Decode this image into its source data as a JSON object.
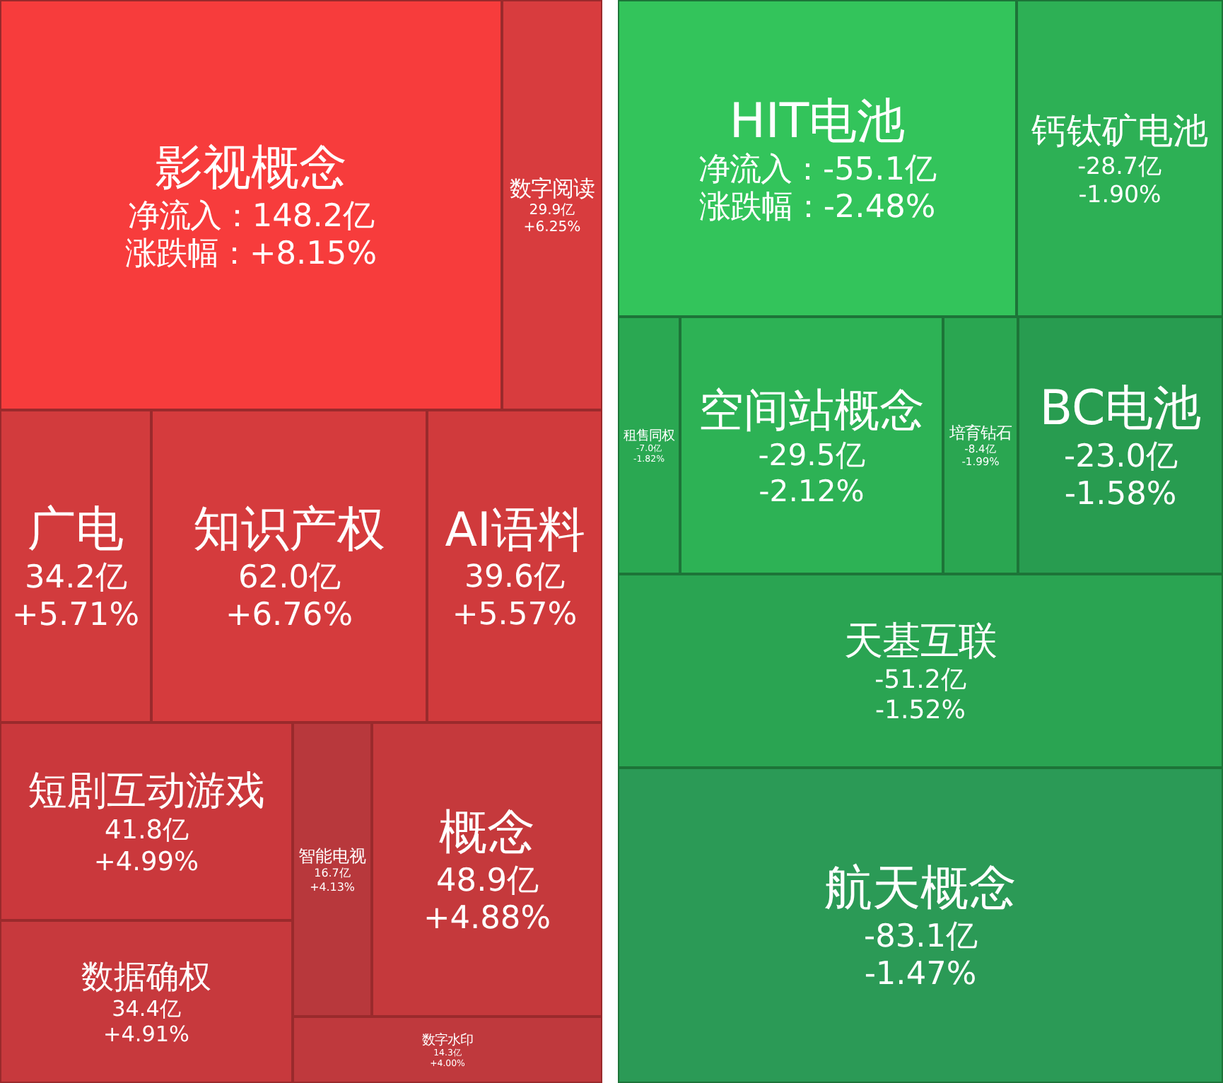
{
  "chart_data": [
    {
      "type": "other",
      "categories": [
        "影视概念",
        "数字阅读",
        "广电",
        "知识产权",
        "AI语料",
        "短剧互动游戏",
        "数据确权",
        "智能电视",
        "概念",
        "数字水印"
      ],
      "series": [
        {
          "colors": [
            "#f73c3c",
            "#d83c3e",
            "#d23b3d",
            "#d53b3d",
            "#d03a3c",
            "#ca383c",
            "#c7393d",
            "#b8383c",
            "#c5393c",
            "#bf393d"
          ],
          "values": [
            148.2,
            29.9,
            34.2,
            62.0,
            39.6,
            41.8,
            34.4,
            16.7,
            48.9,
            14.3
          ],
          "value_labels": [
            "净流入：148.2亿",
            "29.9亿",
            "34.2亿",
            "62.0亿",
            "39.6亿",
            "41.8亿",
            "34.4亿",
            "16.7亿",
            "48.9亿",
            "14.3亿"
          ]
        },
        {
          "values": [
            8.15,
            6.25,
            5.71,
            6.76,
            5.57,
            4.99,
            4.91,
            4.13,
            4.88,
            4.0
          ],
          "value_labels": [
            "涨跌幅：+8.15%",
            "+6.25%",
            "+5.71%",
            "+6.76%",
            "+5.57%",
            "+4.99%",
            "+4.91%",
            "+4.13%",
            "+4.88%",
            "+4.00%"
          ]
        }
      ]
    },
    {
      "type": "other",
      "categories": [
        "HIT电池",
        "钙钛矿电池",
        "租售同权",
        "空间站概念",
        "培育钻石",
        "BC电池",
        "天基互联",
        "航天概念"
      ],
      "series": [
        {
          "colors": [
            "#33c45b",
            "#2db055",
            "#2aa852",
            "#2db255",
            "#2aa651",
            "#289c50",
            "#2aa452",
            "#2b9a56"
          ],
          "values": [
            -55.1,
            -28.7,
            -7.0,
            -29.5,
            -8.4,
            -23.0,
            -51.2,
            -83.1
          ],
          "value_labels": [
            "净流入：-55.1亿",
            "-28.7亿",
            "-7.0亿",
            "-29.5亿",
            "-8.4亿",
            "-23.0亿",
            "-51.2亿",
            "-83.1亿"
          ]
        },
        {
          "values": [
            -2.48,
            -1.9,
            -1.82,
            -2.12,
            -1.99,
            -1.58,
            -1.52,
            -1.47
          ],
          "value_labels": [
            "涨跌幅：-2.48%",
            "-1.90%",
            "-1.82%",
            "-2.12%",
            "-1.99%",
            "-1.58%",
            "-1.52%",
            "-1.47%"
          ]
        }
      ]
    }
  ]
}
